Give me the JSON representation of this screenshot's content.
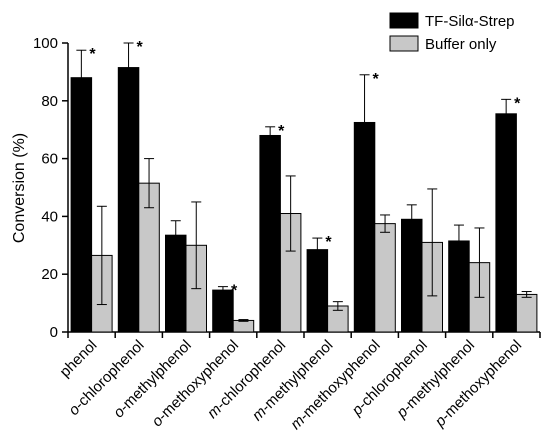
{
  "chart_data": {
    "type": "bar",
    "ylabel": "Conversion (%)",
    "ylim": [
      0,
      100
    ],
    "yticks": [
      0,
      20,
      40,
      60,
      80,
      100
    ],
    "categories": [
      {
        "prefix": "",
        "name": "phenol"
      },
      {
        "prefix": "o",
        "name": "-chlorophenol"
      },
      {
        "prefix": "o",
        "name": "-methylphenol"
      },
      {
        "prefix": "o",
        "name": "-methoxyphenol"
      },
      {
        "prefix": "m",
        "name": "-chlorophenol"
      },
      {
        "prefix": "m",
        "name": "-methylphenol"
      },
      {
        "prefix": "m",
        "name": "-methoxyphenol"
      },
      {
        "prefix": "p",
        "name": "-chlorophenol"
      },
      {
        "prefix": "p",
        "name": "-methylphenol"
      },
      {
        "prefix": "p",
        "name": "-methoxyphenol"
      }
    ],
    "series": [
      {
        "name": "TF-Silα-Strep",
        "color": "#000000",
        "values": [
          88,
          91.5,
          33.5,
          14.5,
          68,
          28.5,
          72.5,
          39,
          31.5,
          75.5
        ],
        "errors": [
          9.5,
          8.5,
          5,
          1.2,
          3,
          4,
          16.5,
          5,
          5.5,
          5
        ]
      },
      {
        "name": "Buffer only",
        "color": "#c8c8c8",
        "values": [
          26.5,
          51.5,
          30,
          4,
          41,
          9,
          37.5,
          31,
          24,
          13
        ],
        "errors": [
          17,
          8.5,
          15,
          0.3,
          13,
          1.5,
          3,
          18.5,
          12,
          1
        ]
      }
    ],
    "significance": [
      true,
      true,
      false,
      true,
      true,
      true,
      true,
      false,
      false,
      true
    ],
    "significance_marker": "*",
    "legend_position": "top-right"
  }
}
